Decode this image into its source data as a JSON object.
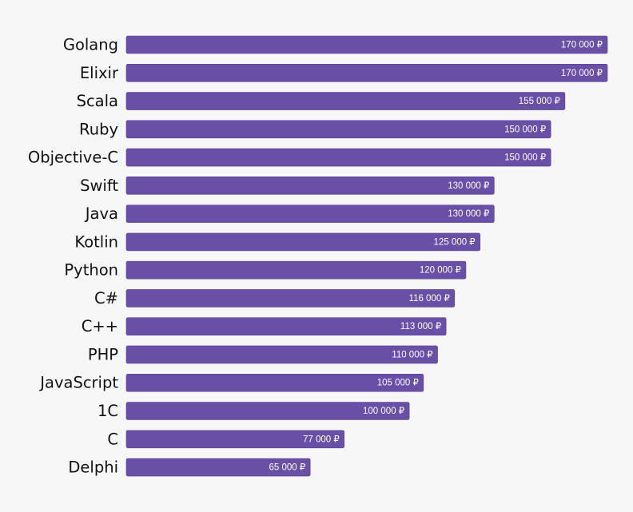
{
  "chart_data": {
    "type": "bar",
    "orientation": "horizontal",
    "categories": [
      "Golang",
      "Elixir",
      "Scala",
      "Ruby",
      "Objective-C",
      "Swift",
      "Java",
      "Kotlin",
      "Python",
      "C#",
      "C++",
      "PHP",
      "JavaScript",
      "1C",
      "C",
      "Delphi"
    ],
    "values": [
      170000,
      170000,
      155000,
      150000,
      150000,
      130000,
      130000,
      125000,
      120000,
      116000,
      113000,
      110000,
      105000,
      100000,
      77000,
      65000
    ],
    "value_labels": [
      "170 000 ₽",
      "170 000 ₽",
      "155 000 ₽",
      "150 000 ₽",
      "150 000 ₽",
      "130 000 ₽",
      "130 000 ₽",
      "125 000 ₽",
      "120 000 ₽",
      "116 000 ₽",
      "113 000 ₽",
      "110 000 ₽",
      "105 000 ₽",
      "100 000 ₽",
      "77 000 ₽",
      "65 000 ₽"
    ],
    "xlim": [
      0,
      170000
    ],
    "title": "",
    "xlabel": "",
    "ylabel": "",
    "grid": false,
    "legend": "none",
    "colors": {
      "bar": "#6a4fa6",
      "bar_edge": "#5a4196",
      "background": "#f7f7f7",
      "category_text": "#111111",
      "value_text": "#ffffff"
    }
  }
}
